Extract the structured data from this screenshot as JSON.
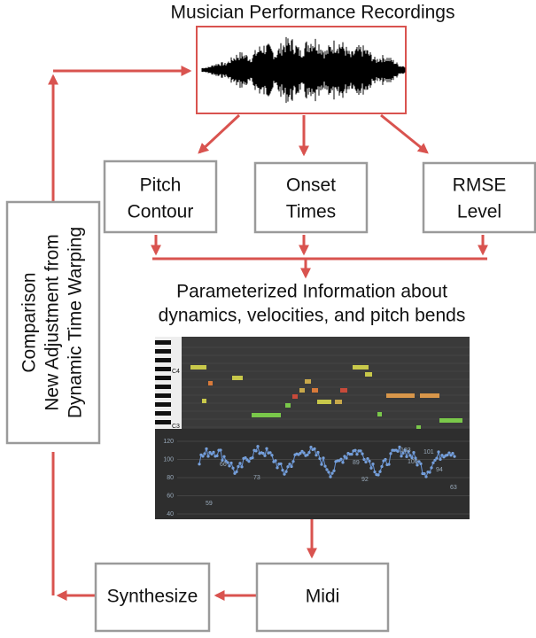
{
  "title": "Musician Performance Recordings",
  "features": [
    {
      "lines": [
        "Pitch",
        "Contour"
      ]
    },
    {
      "lines": [
        "Onset",
        "Times"
      ]
    },
    {
      "lines": [
        "RMSE",
        "Level"
      ]
    }
  ],
  "parameterized": [
    "Parameterized Information about",
    "dynamics, velocities, and pitch bends"
  ],
  "piano_roll": {
    "labels": [
      "C4",
      "C3"
    ]
  },
  "velocity_axis": [
    "120",
    "100",
    "80",
    "60",
    "40"
  ],
  "velocity_labels": [
    "59",
    "66",
    "73",
    "89",
    "92",
    "103",
    "100",
    "101",
    "94",
    "63"
  ],
  "midi": "Midi",
  "synthesize": "Synthesize",
  "comparison": [
    "Comparison",
    "New Adjustment from",
    "Dynamic Time Warping"
  ]
}
